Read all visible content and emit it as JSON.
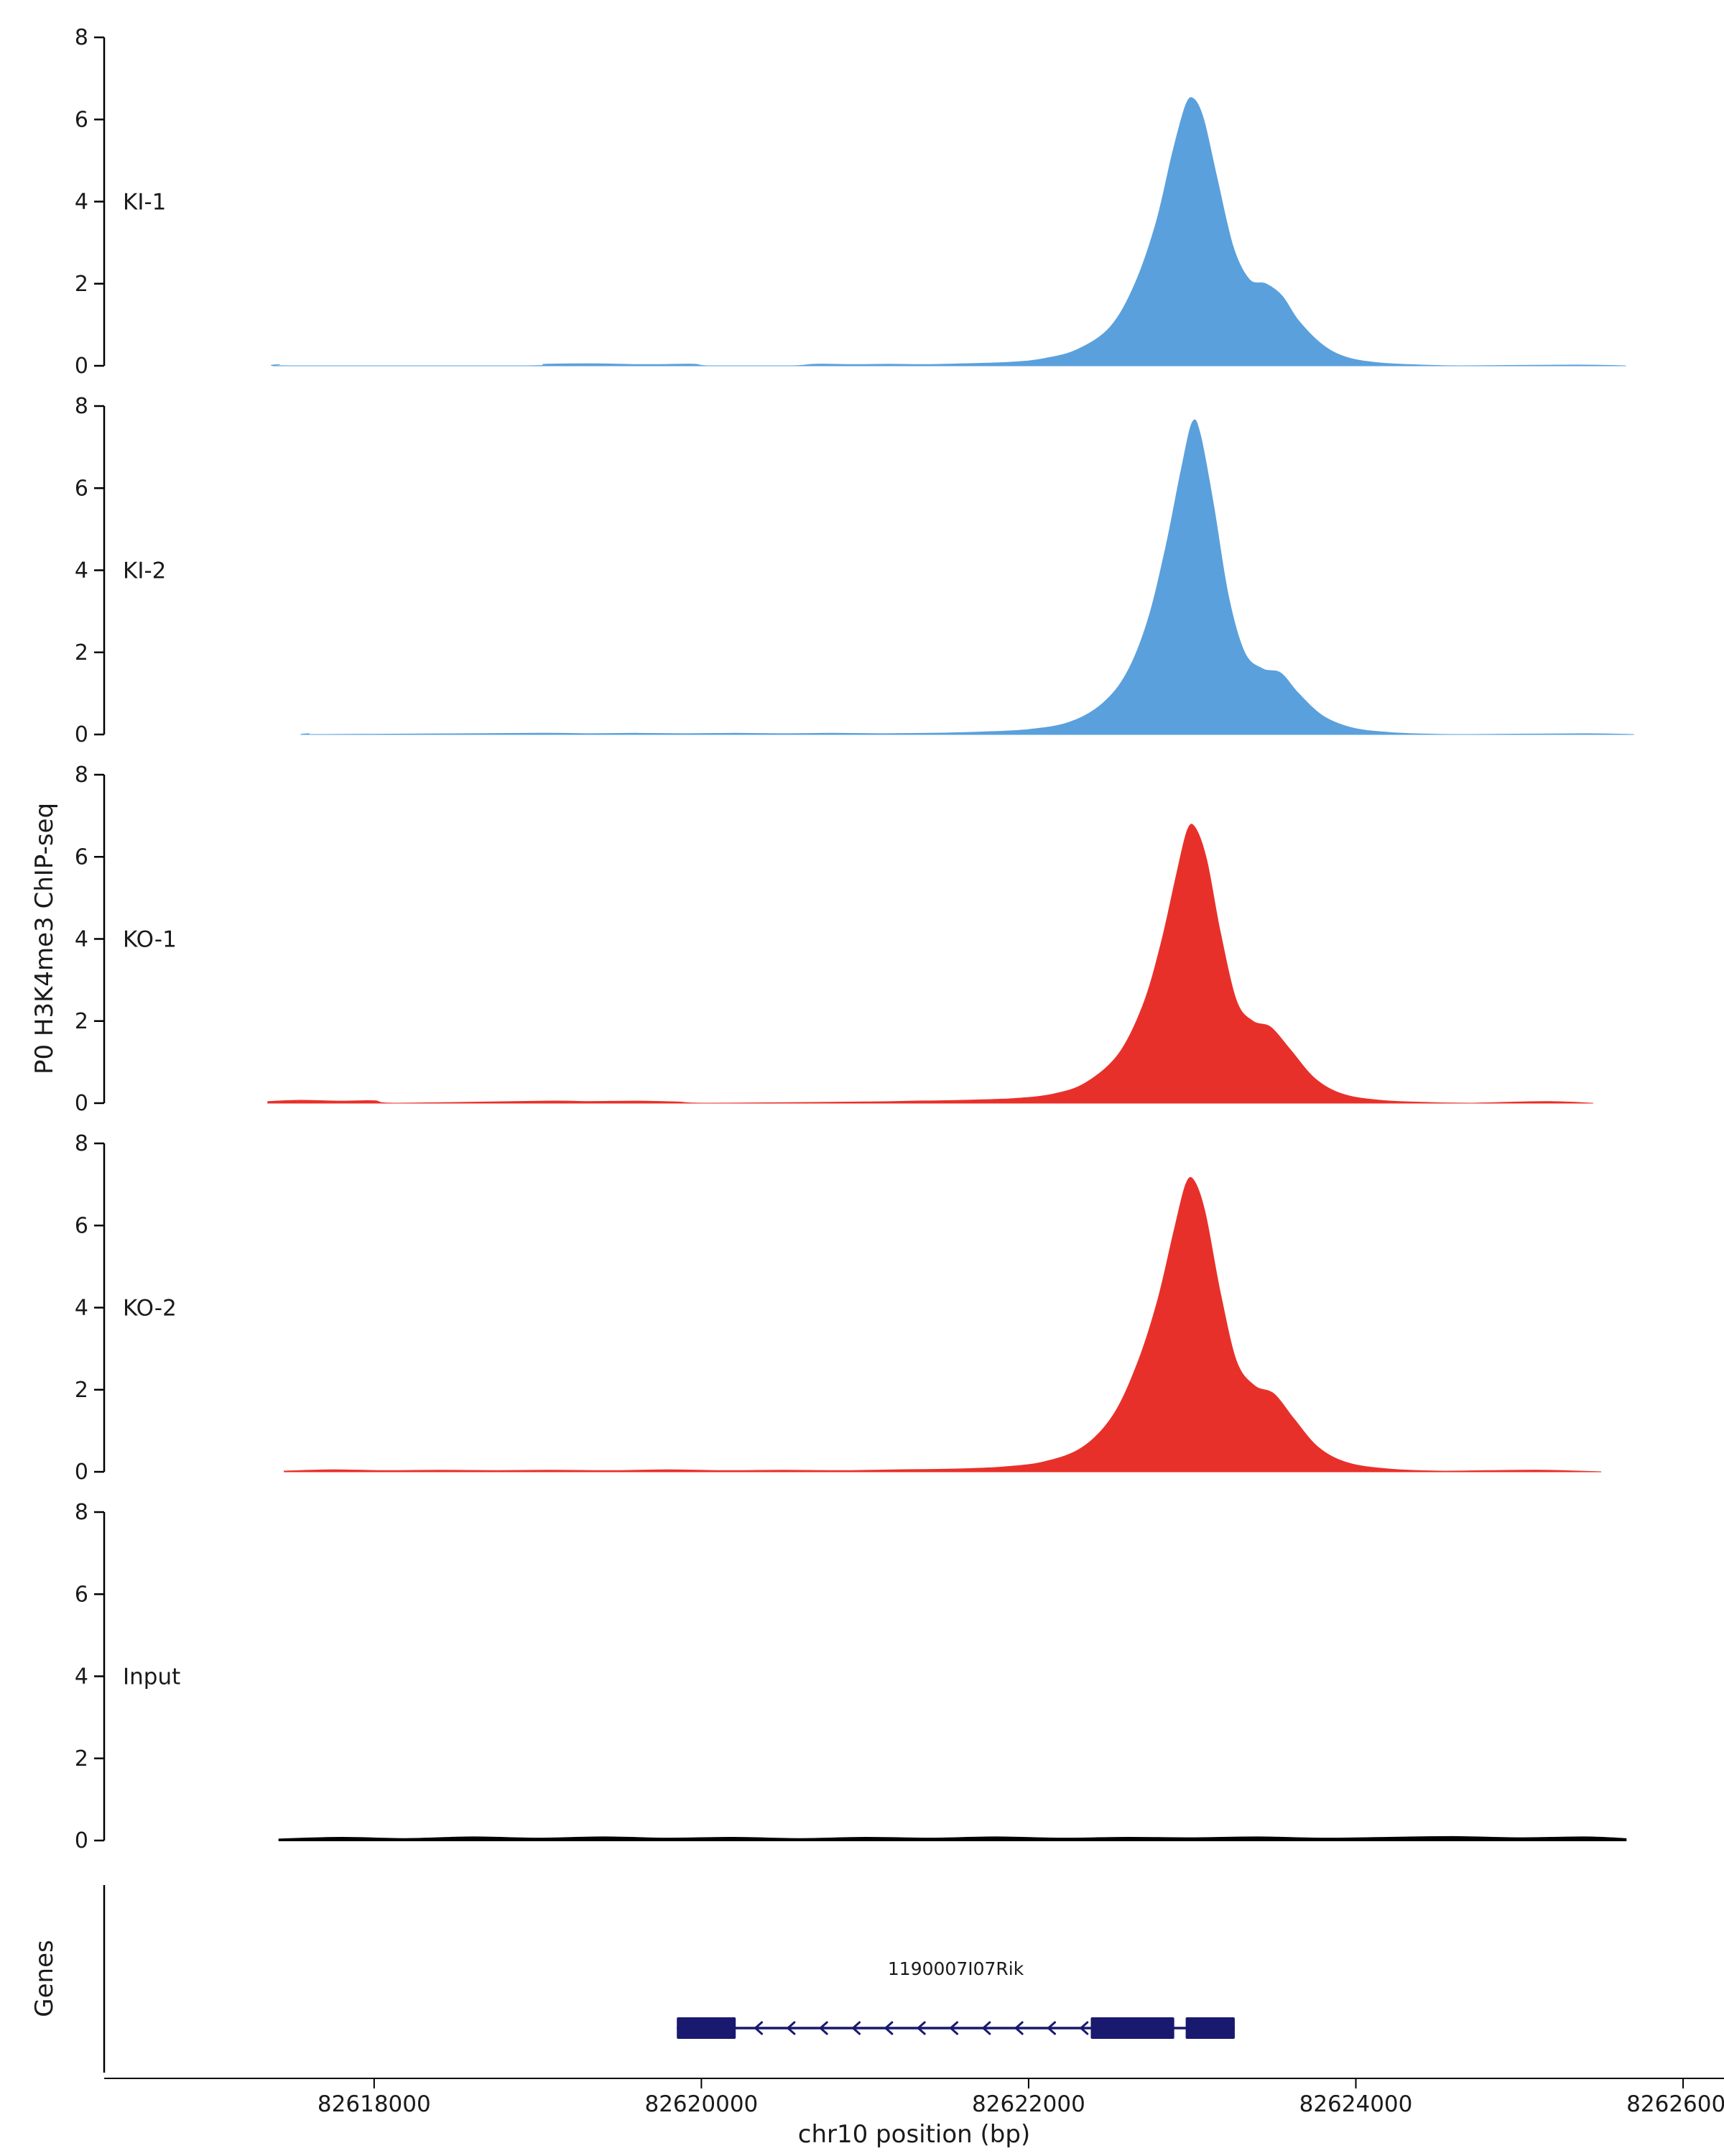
{
  "figure": {
    "y_axis_title": "P0 H3K4me3 ChIP-seq",
    "genes_title": "Genes",
    "x_axis_title": "chr10 position (bp)"
  },
  "chart_data": {
    "type": "area",
    "title": "",
    "xlabel": "chr10 position (bp)",
    "ylabel": "P0 H3K4me3 ChIP-seq",
    "xlim": [
      82616350,
      82626250
    ],
    "x_ticks": [
      82618000,
      82620000,
      82622000,
      82624000,
      82626000
    ],
    "track_ylim": [
      0,
      8
    ],
    "track_yticks": [
      0,
      2,
      4,
      6,
      8
    ],
    "legend": "none",
    "grid": false,
    "tracks": [
      {
        "name": "KI-1",
        "color": "#5AA0DC",
        "peak_summit_bp": 82623000,
        "peak_height": 6.5,
        "points": [
          [
            82617380,
            0
          ],
          [
            82617420,
            0.03
          ],
          [
            82617500,
            0
          ],
          [
            82618900,
            0
          ],
          [
            82619050,
            0.04
          ],
          [
            82619350,
            0.05
          ],
          [
            82619650,
            0.03
          ],
          [
            82619950,
            0.04
          ],
          [
            82620050,
            0
          ],
          [
            82620550,
            0
          ],
          [
            82620700,
            0.04
          ],
          [
            82620950,
            0.03
          ],
          [
            82621150,
            0.04
          ],
          [
            82621350,
            0.03
          ],
          [
            82621600,
            0.05
          ],
          [
            82621900,
            0.09
          ],
          [
            82622100,
            0.18
          ],
          [
            82622300,
            0.4
          ],
          [
            82622500,
            0.95
          ],
          [
            82622650,
            2.0
          ],
          [
            82622780,
            3.5
          ],
          [
            82622880,
            5.2
          ],
          [
            82622960,
            6.35
          ],
          [
            82623010,
            6.5
          ],
          [
            82623070,
            6.0
          ],
          [
            82623150,
            4.6
          ],
          [
            82623250,
            2.9
          ],
          [
            82623350,
            2.1
          ],
          [
            82623450,
            2.0
          ],
          [
            82623550,
            1.7
          ],
          [
            82623650,
            1.1
          ],
          [
            82623800,
            0.5
          ],
          [
            82623950,
            0.2
          ],
          [
            82624150,
            0.07
          ],
          [
            82624400,
            0.02
          ],
          [
            82624650,
            0
          ],
          [
            82625350,
            0.02
          ],
          [
            82625650,
            0
          ]
        ]
      },
      {
        "name": "KI-2",
        "color": "#5AA0DC",
        "peak_summit_bp": 82623000,
        "peak_height": 7.6,
        "points": [
          [
            82617550,
            0
          ],
          [
            82617600,
            0.02
          ],
          [
            82617700,
            0
          ],
          [
            82619000,
            0.03
          ],
          [
            82619300,
            0.02
          ],
          [
            82619600,
            0.03
          ],
          [
            82619900,
            0.02
          ],
          [
            82620200,
            0.03
          ],
          [
            82620500,
            0.02
          ],
          [
            82620800,
            0.03
          ],
          [
            82621100,
            0.02
          ],
          [
            82621400,
            0.03
          ],
          [
            82621700,
            0.06
          ],
          [
            82622000,
            0.12
          ],
          [
            82622250,
            0.3
          ],
          [
            82622450,
            0.75
          ],
          [
            82622600,
            1.5
          ],
          [
            82622730,
            2.8
          ],
          [
            82622840,
            4.6
          ],
          [
            82622930,
            6.4
          ],
          [
            82623000,
            7.6
          ],
          [
            82623050,
            7.3
          ],
          [
            82623130,
            5.6
          ],
          [
            82623220,
            3.4
          ],
          [
            82623320,
            2.0
          ],
          [
            82623430,
            1.6
          ],
          [
            82623540,
            1.5
          ],
          [
            82623650,
            1.0
          ],
          [
            82623800,
            0.45
          ],
          [
            82623980,
            0.16
          ],
          [
            82624200,
            0.05
          ],
          [
            82624450,
            0.01
          ],
          [
            82624700,
            0
          ],
          [
            82625400,
            0.02
          ],
          [
            82625700,
            0
          ]
        ]
      },
      {
        "name": "KO-1",
        "color": "#E8302A",
        "peak_summit_bp": 82623000,
        "peak_height": 6.7,
        "points": [
          [
            82617350,
            0.04
          ],
          [
            82617550,
            0.07
          ],
          [
            82617800,
            0.05
          ],
          [
            82618000,
            0.06
          ],
          [
            82618150,
            0
          ],
          [
            82619050,
            0.05
          ],
          [
            82619300,
            0.04
          ],
          [
            82619600,
            0.05
          ],
          [
            82619850,
            0.03
          ],
          [
            82620050,
            0
          ],
          [
            82621000,
            0.03
          ],
          [
            82621300,
            0.05
          ],
          [
            82621600,
            0.07
          ],
          [
            82621900,
            0.11
          ],
          [
            82622150,
            0.22
          ],
          [
            82622350,
            0.5
          ],
          [
            82622550,
            1.2
          ],
          [
            82622700,
            2.4
          ],
          [
            82622810,
            3.9
          ],
          [
            82622900,
            5.5
          ],
          [
            82622970,
            6.65
          ],
          [
            82623020,
            6.7
          ],
          [
            82623090,
            5.9
          ],
          [
            82623170,
            4.2
          ],
          [
            82623270,
            2.5
          ],
          [
            82623370,
            2.0
          ],
          [
            82623480,
            1.85
          ],
          [
            82623600,
            1.3
          ],
          [
            82623750,
            0.6
          ],
          [
            82623920,
            0.22
          ],
          [
            82624150,
            0.07
          ],
          [
            82624420,
            0.02
          ],
          [
            82624700,
            0
          ],
          [
            82625150,
            0.04
          ],
          [
            82625450,
            0
          ]
        ]
      },
      {
        "name": "KO-2",
        "color": "#E8302A",
        "peak_summit_bp": 82623000,
        "peak_height": 7.1,
        "points": [
          [
            82617450,
            0.02
          ],
          [
            82617750,
            0.05
          ],
          [
            82618050,
            0.03
          ],
          [
            82618400,
            0.04
          ],
          [
            82618750,
            0.03
          ],
          [
            82619100,
            0.04
          ],
          [
            82619450,
            0.03
          ],
          [
            82619800,
            0.05
          ],
          [
            82620150,
            0.03
          ],
          [
            82620500,
            0.04
          ],
          [
            82620850,
            0.03
          ],
          [
            82621200,
            0.05
          ],
          [
            82621550,
            0.07
          ],
          [
            82621850,
            0.12
          ],
          [
            82622100,
            0.25
          ],
          [
            82622330,
            0.6
          ],
          [
            82622520,
            1.4
          ],
          [
            82622670,
            2.7
          ],
          [
            82622790,
            4.2
          ],
          [
            82622890,
            5.9
          ],
          [
            82622960,
            7.0
          ],
          [
            82623010,
            7.1
          ],
          [
            82623080,
            6.3
          ],
          [
            82623170,
            4.4
          ],
          [
            82623270,
            2.7
          ],
          [
            82623380,
            2.1
          ],
          [
            82623500,
            1.9
          ],
          [
            82623620,
            1.3
          ],
          [
            82623770,
            0.6
          ],
          [
            82623950,
            0.22
          ],
          [
            82624200,
            0.07
          ],
          [
            82624500,
            0.02
          ],
          [
            82624800,
            0.03
          ],
          [
            82625150,
            0.04
          ],
          [
            82625500,
            0
          ]
        ]
      },
      {
        "name": "Input",
        "color": "#000000",
        "peak_summit_bp": null,
        "peak_height": 0.1,
        "points": [
          [
            82617420,
            0.03
          ],
          [
            82617800,
            0.07
          ],
          [
            82618200,
            0.04
          ],
          [
            82618600,
            0.08
          ],
          [
            82619000,
            0.05
          ],
          [
            82619400,
            0.08
          ],
          [
            82619800,
            0.05
          ],
          [
            82620200,
            0.07
          ],
          [
            82620600,
            0.04
          ],
          [
            82621000,
            0.07
          ],
          [
            82621400,
            0.05
          ],
          [
            82621800,
            0.08
          ],
          [
            82622200,
            0.05
          ],
          [
            82622600,
            0.07
          ],
          [
            82623000,
            0.06
          ],
          [
            82623400,
            0.08
          ],
          [
            82623800,
            0.05
          ],
          [
            82624200,
            0.07
          ],
          [
            82624600,
            0.09
          ],
          [
            82625000,
            0.06
          ],
          [
            82625400,
            0.08
          ],
          [
            82625650,
            0.04
          ]
        ]
      }
    ],
    "genes": [
      {
        "name": "1190007I07Rik",
        "strand": "-",
        "color": "#191970",
        "span": [
          82619850,
          82623260
        ],
        "exons": [
          [
            82619850,
            82620210
          ],
          [
            82622380,
            82622890
          ],
          [
            82622960,
            82623260
          ]
        ],
        "arrow_region": [
          82620330,
          82622320
        ],
        "arrow_count": 11
      }
    ]
  }
}
